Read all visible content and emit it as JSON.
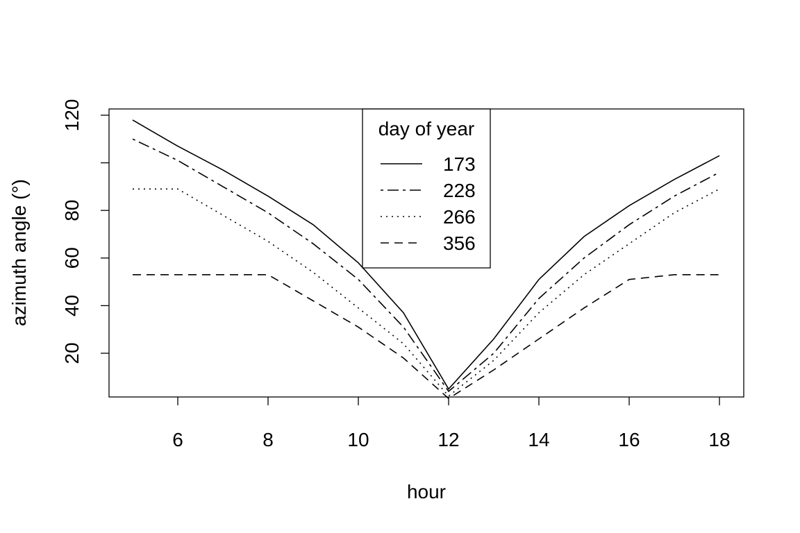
{
  "chart_data": {
    "type": "line",
    "title": "",
    "xlabel": "hour",
    "ylabel": "azimuth angle (°)",
    "xlim": [
      4.5,
      18.5
    ],
    "ylim": [
      0,
      120
    ],
    "xticks": [
      6,
      8,
      10,
      12,
      14,
      16,
      18
    ],
    "yticks": [
      20,
      40,
      60,
      80,
      100,
      120
    ],
    "ytick_labels": [
      "20",
      "40",
      "60",
      "80",
      "",
      "120"
    ],
    "grid": false,
    "legend": {
      "title": "day of year",
      "position": "top-center"
    },
    "x": [
      5,
      6,
      7,
      8,
      9,
      10,
      11,
      12,
      13,
      14,
      15,
      16,
      17,
      18
    ],
    "series": [
      {
        "name": "173",
        "linestyle": "solid",
        "values": [
          118,
          107,
          97,
          86,
          74,
          58,
          37,
          5,
          26,
          51,
          69,
          82,
          93,
          103
        ]
      },
      {
        "name": "228",
        "linestyle": "dashdot",
        "values": [
          110,
          101,
          90,
          79,
          66,
          51,
          31,
          4,
          20,
          43,
          60,
          74,
          86,
          96
        ]
      },
      {
        "name": "266",
        "linestyle": "dotted",
        "values": [
          89,
          89,
          78,
          67,
          54,
          39,
          24,
          2,
          17,
          37,
          53,
          66,
          79,
          89
        ]
      },
      {
        "name": "356",
        "linestyle": "dashed",
        "values": [
          53,
          53,
          53,
          53,
          42,
          31,
          18,
          1,
          13,
          26,
          39,
          51,
          53,
          53
        ]
      }
    ]
  }
}
